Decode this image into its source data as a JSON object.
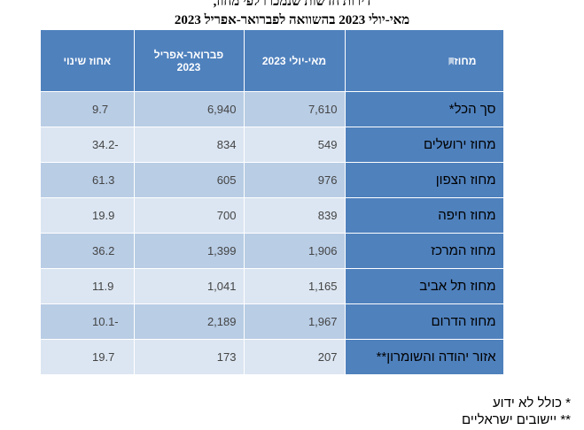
{
  "title": {
    "line1": "דירות חדשות שנמכרו לפי מחוז,",
    "line2": "מאי-יולי 2023 בהשוואה לפברואר-אפריל 2023"
  },
  "table": {
    "headers": {
      "pct_change": "אחוז שינוי",
      "feb_apr": "פברואר-אפריל\n2023",
      "may_jul": "מאי-יולי 2023",
      "region": "מחוז"
    },
    "rows": [
      {
        "region": "סך הכל*",
        "may_jul": "7,610",
        "feb_apr": "6,940",
        "pct": "9.7"
      },
      {
        "region": "מחוז ירושלים",
        "may_jul": "549",
        "feb_apr": "834",
        "pct": "34.2-"
      },
      {
        "region": "מחוז הצפון",
        "may_jul": "976",
        "feb_apr": "605",
        "pct": "61.3"
      },
      {
        "region": "מחוז חיפה",
        "may_jul": "839",
        "feb_apr": "700",
        "pct": "19.9"
      },
      {
        "region": "מחוז המרכז",
        "may_jul": "1,906",
        "feb_apr": "1,399",
        "pct": "36.2"
      },
      {
        "region": "מחוז תל אביב",
        "may_jul": "1,165",
        "feb_apr": "1,041",
        "pct": "11.9"
      },
      {
        "region": "מחוז הדרום",
        "may_jul": "1,967",
        "feb_apr": "2,189",
        "pct": "10.1-"
      },
      {
        "region": "אזור יהודה והשומרון**",
        "may_jul": "207",
        "feb_apr": "173",
        "pct": "19.7"
      }
    ]
  },
  "notes": {
    "note1": "* כולל לא ידוע",
    "note2": "** יישובים ישראליים"
  },
  "colors": {
    "header": "#4f81bd",
    "row_dark": "#b9cde5",
    "row_light": "#dce6f2"
  }
}
